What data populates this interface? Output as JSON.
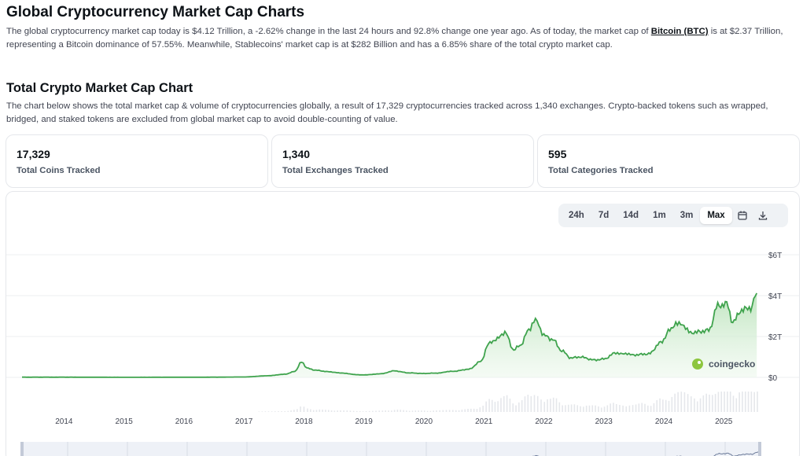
{
  "header": {
    "title": "Global Cryptocurrency Market Cap Charts",
    "intro_part1": "The global cryptocurrency market cap today is $4.12 Trillion, a -2.62% change in the last 24 hours and 92.8% change one year ago. As of today, the market cap of ",
    "intro_link": "Bitcoin (BTC)",
    "intro_part2": " is at $2.37 Trillion, representing a Bitcoin dominance of 57.55%. Meanwhile, Stablecoins' market cap is at $282 Billion and has a 6.85% share of the total crypto market cap."
  },
  "section": {
    "title": "Total Crypto Market Cap Chart",
    "description": "The chart below shows the total market cap & volume of cryptocurrencies globally, a result of 17,329 cryptocurrencies tracked across 1,340 exchanges. Crypto-backed tokens such as wrapped, bridged, and staked tokens are excluded from global market cap to avoid double-counting of value."
  },
  "stats": [
    {
      "value": "17,329",
      "label": "Total Coins Tracked"
    },
    {
      "value": "1,340",
      "label": "Total Exchanges Tracked"
    },
    {
      "value": "595",
      "label": "Total Categories Tracked"
    }
  ],
  "range_buttons": [
    {
      "label": "24h",
      "active": false
    },
    {
      "label": "7d",
      "active": false
    },
    {
      "label": "14d",
      "active": false
    },
    {
      "label": "1m",
      "active": false
    },
    {
      "label": "3m",
      "active": false
    },
    {
      "label": "Max",
      "active": true
    }
  ],
  "icons": {
    "calendar": "calendar-icon",
    "download": "download-icon",
    "watermark": "coingecko-logo-icon"
  },
  "watermark_text": "coingecko",
  "colors": {
    "line": "#3fa34d",
    "area": "#dcf2dc",
    "grid": "#eceff2",
    "volume": "#e5e7eb",
    "navigator_bg": "#eef1f7"
  },
  "chart_data": {
    "type": "area",
    "title": "",
    "xlabel": "",
    "ylabel": "",
    "x_ticks": [
      "2014",
      "2015",
      "2016",
      "2017",
      "2018",
      "2019",
      "2020",
      "2021",
      "2022",
      "2023",
      "2024",
      "2025"
    ],
    "y_ticks": [
      "$0",
      "$2T",
      "$4T",
      "$6T"
    ],
    "xlim": [
      2013.3,
      2025.6
    ],
    "ylim_trillions": [
      0,
      6
    ],
    "grid": true,
    "legend": "none",
    "series": [
      {
        "unit": "trillions USD",
        "x": [
          2013.3,
          2014.0,
          2015.0,
          2016.0,
          2016.5,
          2017.0,
          2017.4,
          2017.7,
          2017.85,
          2017.96,
          2018.05,
          2018.2,
          2018.4,
          2018.6,
          2018.9,
          2019.0,
          2019.3,
          2019.5,
          2019.75,
          2020.0,
          2020.2,
          2020.5,
          2020.75,
          2020.95,
          2021.08,
          2021.2,
          2021.35,
          2021.5,
          2021.6,
          2021.75,
          2021.86,
          2022.0,
          2022.15,
          2022.3,
          2022.45,
          2022.6,
          2022.85,
          2023.0,
          2023.2,
          2023.5,
          2023.75,
          2023.95,
          2024.1,
          2024.2,
          2024.5,
          2024.75,
          2024.9,
          2025.05,
          2025.15,
          2025.3,
          2025.45,
          2025.55
        ],
        "values": [
          0.01,
          0.01,
          0.005,
          0.007,
          0.01,
          0.02,
          0.08,
          0.16,
          0.3,
          0.75,
          0.45,
          0.35,
          0.28,
          0.22,
          0.13,
          0.12,
          0.18,
          0.32,
          0.22,
          0.19,
          0.21,
          0.3,
          0.4,
          0.78,
          1.65,
          1.85,
          2.2,
          1.35,
          1.55,
          2.3,
          2.9,
          2.05,
          1.85,
          1.3,
          0.95,
          1.0,
          0.85,
          0.9,
          1.2,
          1.1,
          1.15,
          1.7,
          2.3,
          2.65,
          2.2,
          2.3,
          3.5,
          3.6,
          2.7,
          3.3,
          3.4,
          4.12
        ]
      }
    ]
  }
}
